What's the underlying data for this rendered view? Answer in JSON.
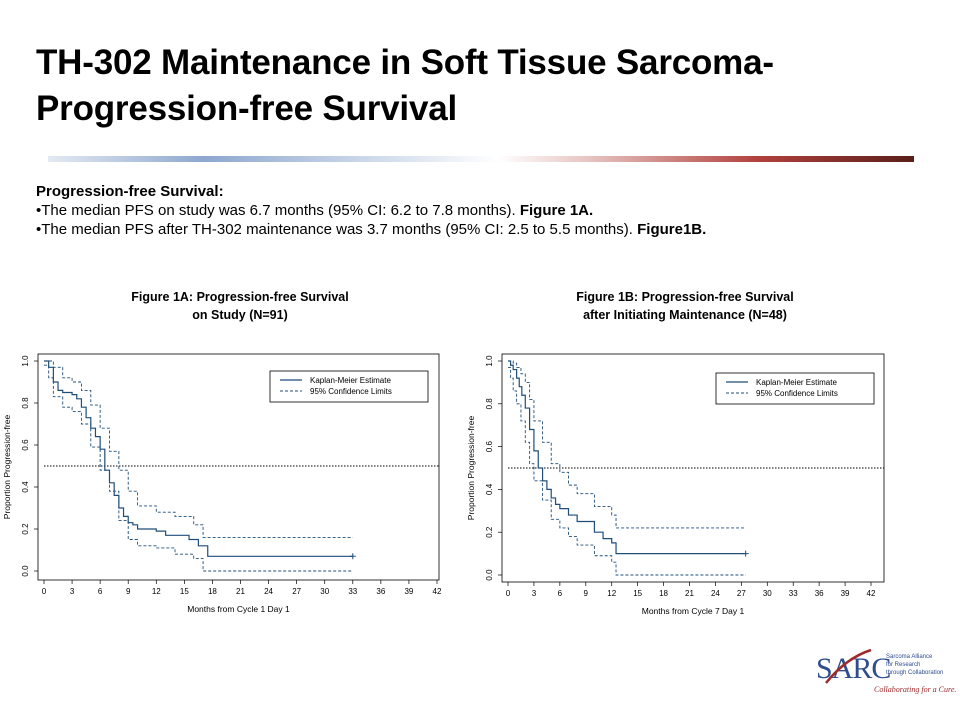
{
  "slide": {
    "title_line1": "TH-302 Maintenance in Soft Tissue Sarcoma-",
    "title_line2": "Progression-free Survival",
    "summary_heading": "Progression-free Survival:",
    "bullet1_text": "•The median PFS on study was 6.7 months (95% CI: 6.2 to 7.8 months). ",
    "bullet1_ref": "Figure 1A.",
    "bullet2_text": "•The median PFS after TH-302 maintenance was 3.7 months (95% CI: 2.5 to 5.5 months). ",
    "bullet2_ref": "Figure1B.",
    "colors": {
      "curve": "#1f4e79",
      "ci": "#1f4e79",
      "median_line": "#000000",
      "logo_red": "#9e2a2b",
      "logo_blue": "#2e4d8f"
    }
  },
  "figures": [
    {
      "title_line1": "Figure 1A: Progression-free Survival",
      "title_line2": "on Study (N=91)"
    },
    {
      "title_line1": "Figure 1B: Progression-free Survival",
      "title_line2": "after Initiating Maintenance (N=48)"
    }
  ],
  "logo": {
    "name": "SARC",
    "tag1": "Sarcoma Alliance",
    "tag2": "for Research",
    "tag3": "through Collaboration",
    "slogan": "Collaborating for a Cure."
  },
  "chart_data": [
    {
      "type": "line",
      "title": "Figure 1A: Progression-free Survival on Study (N=91)",
      "xlabel": "Months from Cycle 1 Day 1",
      "ylabel": "Proportion Progression-free",
      "xticks": [
        0,
        3,
        6,
        9,
        12,
        15,
        18,
        21,
        24,
        27,
        30,
        33,
        36,
        39,
        42
      ],
      "yticks": [
        0.0,
        0.2,
        0.4,
        0.6,
        0.8,
        1.0
      ],
      "yticklabels": [
        "0.0",
        "0.2",
        "0.4",
        "0.6",
        "0.8",
        "1.0"
      ],
      "xlim": [
        0,
        42
      ],
      "ylim": [
        0,
        1
      ],
      "legend_position": "top-right",
      "reference_line_y": 0.5,
      "series": [
        {
          "name": "Kaplan-Meier Estimate",
          "style": "solid",
          "x": [
            0,
            0.5,
            1.0,
            1.5,
            2.0,
            3.0,
            3.5,
            4.0,
            4.5,
            5.0,
            5.5,
            6.0,
            6.5,
            7.0,
            7.5,
            8.0,
            8.5,
            9.0,
            9.5,
            10.0,
            11.0,
            12.0,
            13.0,
            15.5,
            16.5,
            17.5,
            33.0
          ],
          "y": [
            1.0,
            0.97,
            0.9,
            0.86,
            0.85,
            0.84,
            0.82,
            0.78,
            0.73,
            0.68,
            0.64,
            0.58,
            0.48,
            0.42,
            0.36,
            0.3,
            0.26,
            0.23,
            0.22,
            0.2,
            0.2,
            0.19,
            0.17,
            0.15,
            0.12,
            0.07,
            0.07
          ]
        },
        {
          "name": "95% Confidence Limits",
          "style": "dashed",
          "x": [
            0,
            0.5,
            1.0,
            2.0,
            3.0,
            4.0,
            5.0,
            6.0,
            7.0,
            8.0,
            9.0,
            10.0,
            12.0,
            14.0,
            16.0,
            17.0,
            33.0
          ],
          "y": [
            1.0,
            1.0,
            0.97,
            0.92,
            0.9,
            0.86,
            0.79,
            0.68,
            0.57,
            0.48,
            0.38,
            0.31,
            0.28,
            0.26,
            0.22,
            0.16,
            0.16
          ]
        },
        {
          "name": "95% Confidence Limits (lower)",
          "style": "dashed",
          "x": [
            0,
            0.5,
            1.0,
            2.0,
            3.0,
            4.0,
            5.0,
            6.0,
            7.0,
            8.0,
            9.0,
            10.0,
            12.0,
            14.0,
            16.0,
            17.0,
            33.0
          ],
          "y": [
            0.98,
            0.92,
            0.83,
            0.78,
            0.76,
            0.7,
            0.59,
            0.48,
            0.38,
            0.24,
            0.15,
            0.12,
            0.11,
            0.08,
            0.06,
            0.0,
            0.0
          ]
        }
      ]
    },
    {
      "type": "line",
      "title": "Figure 1B: Progression-free Survival after Initiating Maintenance (N=48)",
      "xlabel": "Months from Cycle 7 Day 1",
      "ylabel": "Proportion Progression-free",
      "xticks": [
        0,
        3,
        6,
        9,
        12,
        15,
        18,
        21,
        24,
        27,
        30,
        33,
        36,
        39,
        42
      ],
      "yticks": [
        0.0,
        0.2,
        0.4,
        0.6,
        0.8,
        1.0
      ],
      "yticklabels": [
        "0.0",
        "0.2",
        "0.4",
        "0.6",
        "0.8",
        "1.0"
      ],
      "xlim": [
        0,
        42
      ],
      "ylim": [
        0,
        1
      ],
      "legend_position": "top-right",
      "reference_line_y": 0.5,
      "series": [
        {
          "name": "Kaplan-Meier Estimate",
          "style": "solid",
          "x": [
            0,
            0.3,
            0.6,
            1.0,
            1.3,
            1.6,
            2.0,
            2.5,
            3.0,
            3.5,
            4.0,
            4.5,
            5.0,
            5.5,
            6.0,
            7.0,
            8.0,
            10.0,
            11.0,
            12.0,
            12.5,
            27.5
          ],
          "y": [
            1.0,
            0.98,
            0.96,
            0.92,
            0.88,
            0.84,
            0.78,
            0.68,
            0.58,
            0.5,
            0.44,
            0.4,
            0.36,
            0.33,
            0.31,
            0.28,
            0.25,
            0.2,
            0.17,
            0.15,
            0.1,
            0.1
          ]
        },
        {
          "name": "95% Confidence Limits",
          "style": "dashed",
          "x": [
            0,
            0.3,
            0.6,
            1.0,
            1.5,
            2.0,
            2.5,
            3.0,
            4.0,
            5.0,
            6.0,
            7.0,
            8.0,
            10.0,
            12.0,
            12.5,
            27.5
          ],
          "y": [
            1.0,
            1.0,
            0.99,
            0.97,
            0.94,
            0.9,
            0.82,
            0.72,
            0.62,
            0.52,
            0.48,
            0.42,
            0.38,
            0.32,
            0.28,
            0.22,
            0.22
          ]
        },
        {
          "name": "95% Confidence Limits (lower)",
          "style": "dashed",
          "x": [
            0,
            0.3,
            0.6,
            1.0,
            1.5,
            2.0,
            2.5,
            3.0,
            4.0,
            5.0,
            6.0,
            7.0,
            8.0,
            10.0,
            12.0,
            12.5,
            27.5
          ],
          "y": [
            0.97,
            0.92,
            0.86,
            0.8,
            0.72,
            0.62,
            0.52,
            0.44,
            0.35,
            0.26,
            0.22,
            0.18,
            0.14,
            0.09,
            0.06,
            0.0,
            0.0
          ]
        }
      ]
    }
  ]
}
